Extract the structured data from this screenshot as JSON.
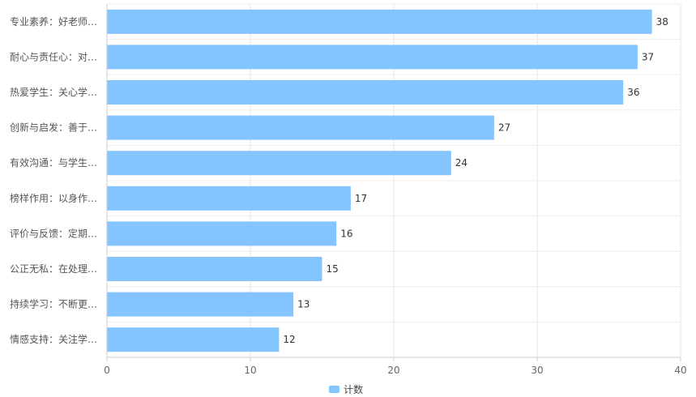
{
  "chart_data": {
    "type": "bar",
    "orientation": "horizontal",
    "categories": [
      "专业素养：好老师…",
      "耐心与责任心：对…",
      "热爱学生：关心学…",
      "创新与启发：善于…",
      "有效沟通：与学生…",
      "榜样作用：以身作…",
      "评价与反馈：定期…",
      "公正无私：在处理…",
      "持续学习：不断更…",
      "情感支持：关注学…"
    ],
    "series": [
      {
        "name": "计数",
        "values": [
          38,
          37,
          36,
          27,
          24,
          17,
          16,
          15,
          13,
          12
        ],
        "color": "#85c5ff"
      }
    ],
    "xlim": [
      0,
      40
    ],
    "xticks": [
      0,
      10,
      20,
      30,
      40
    ],
    "grid": true,
    "legend_position": "bottom-center"
  }
}
